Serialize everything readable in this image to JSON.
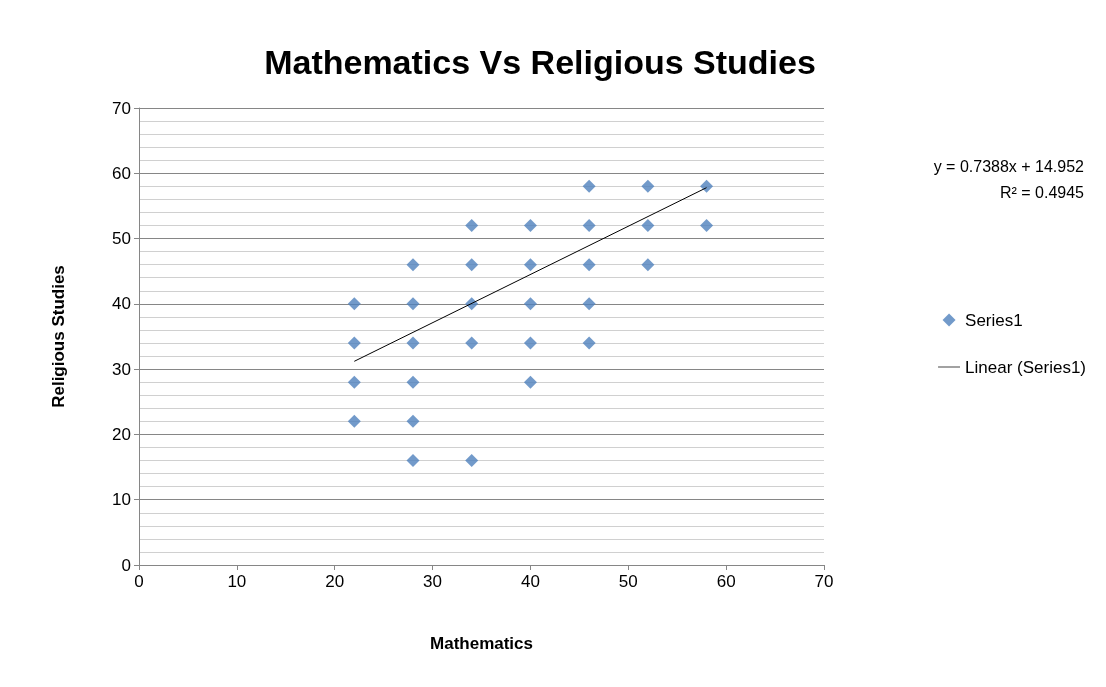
{
  "chart_data": {
    "type": "scatter",
    "title": "Mathematics Vs Religious Studies",
    "xlabel": "Mathematics",
    "ylabel": "Religious Studies",
    "xlim": [
      0,
      70
    ],
    "xticks": [
      0,
      10,
      20,
      30,
      40,
      50,
      60,
      70
    ],
    "ylim": [
      0,
      70
    ],
    "yticks": [
      0,
      10,
      20,
      30,
      40,
      50,
      60,
      70
    ],
    "grid": "y",
    "legend": "right",
    "annotations": [
      "y = 0.7388x + 14.952",
      "R² = 0.4945"
    ],
    "series": [
      {
        "name": "Series1",
        "marker": "diamond",
        "color": "#4f81bd",
        "x": [
          22,
          22,
          22,
          22,
          28,
          28,
          28,
          28,
          28,
          28,
          34,
          34,
          34,
          34,
          34,
          40,
          40,
          40,
          40,
          40,
          46,
          46,
          46,
          46,
          46,
          52,
          52,
          52,
          58,
          58
        ],
        "values": [
          40,
          34,
          28,
          22,
          46,
          40,
          34,
          28,
          22,
          16,
          52,
          46,
          40,
          34,
          16,
          52,
          46,
          40,
          34,
          28,
          58,
          52,
          46,
          40,
          34,
          58,
          52,
          46,
          58,
          52
        ]
      },
      {
        "name": "Linear (Series1)",
        "type": "line",
        "marker": "none",
        "color": "#000000",
        "x": [
          22,
          58
        ],
        "values": [
          31.2,
          57.8
        ]
      }
    ]
  }
}
